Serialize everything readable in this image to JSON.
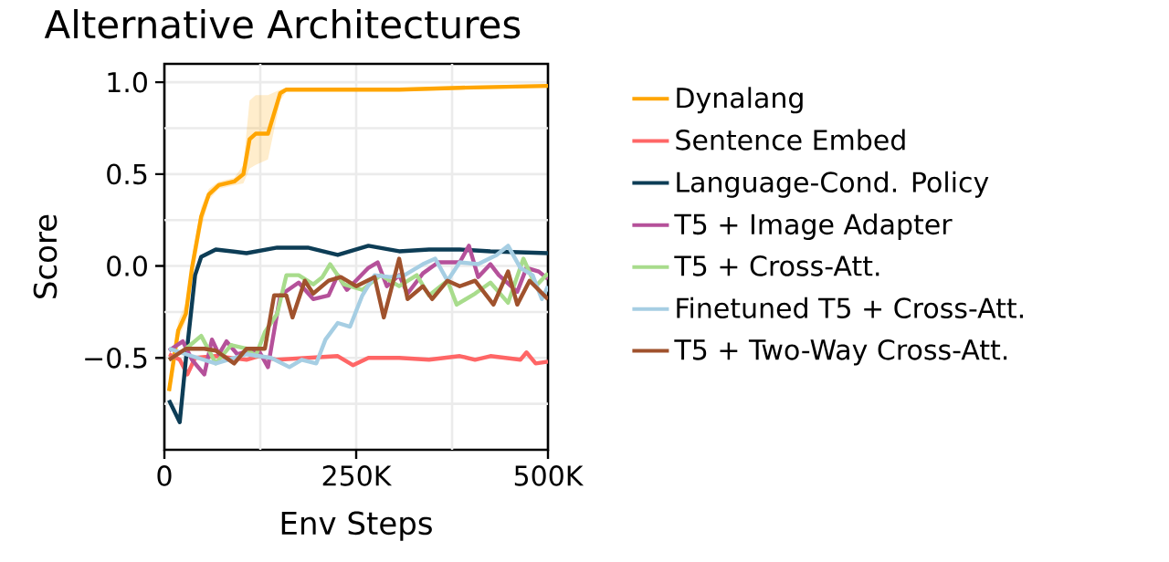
{
  "chart_data": {
    "type": "line",
    "title": "Alternative Architectures",
    "xlabel": "Env Steps",
    "ylabel": "Score",
    "xlim": [
      0,
      500000
    ],
    "ylim": [
      -1.0,
      1.1
    ],
    "xticks": [
      {
        "value": 0,
        "label": "0"
      },
      {
        "value": 125000,
        "label": null
      },
      {
        "value": 250000,
        "label": "250K"
      },
      {
        "value": 375000,
        "label": null
      },
      {
        "value": 500000,
        "label": "500K"
      }
    ],
    "yticks": [
      {
        "value": -0.75,
        "label": null
      },
      {
        "value": -0.5,
        "label": "−0.5"
      },
      {
        "value": -0.25,
        "label": null
      },
      {
        "value": 0,
        "label": "0.0"
      },
      {
        "value": 0.25,
        "label": null
      },
      {
        "value": 0.5,
        "label": "0.5"
      },
      {
        "value": 0.75,
        "label": null
      },
      {
        "value": 1.0,
        "label": "1.0"
      }
    ],
    "grid": true,
    "legend": "right",
    "line_style": "solid",
    "marker": "none",
    "series": [
      {
        "name": "Dynalang",
        "color": "#ffa500",
        "x": [
          6000,
          18000,
          28000,
          36000,
          48000,
          58000,
          71000,
          91000,
          103000,
          111000,
          119000,
          135000,
          151000,
          159000,
          226000,
          306000,
          385000,
          500000
        ],
        "values": [
          -0.68,
          -0.35,
          -0.26,
          -0.01,
          0.27,
          0.39,
          0.44,
          0.46,
          0.5,
          0.69,
          0.72,
          0.72,
          0.94,
          0.96,
          0.96,
          0.96,
          0.97,
          0.98
        ],
        "lower": [
          -0.7,
          -0.4,
          -0.3,
          -0.08,
          0.2,
          0.36,
          0.42,
          0.44,
          0.45,
          0.53,
          0.55,
          0.58,
          0.9,
          0.95,
          0.95,
          0.95,
          0.96,
          0.97
        ],
        "upper": [
          -0.66,
          -0.3,
          -0.2,
          0.05,
          0.32,
          0.42,
          0.46,
          0.48,
          0.55,
          0.9,
          0.93,
          0.93,
          0.96,
          0.97,
          0.97,
          0.97,
          0.98,
          0.99
        ]
      },
      {
        "name": "Sentence Embed",
        "color": "#ff6666",
        "x": [
          6000,
          20000,
          30000,
          40000,
          67000,
          107000,
          123000,
          147000,
          187000,
          226000,
          246000,
          266000,
          306000,
          345000,
          385000,
          405000,
          425000,
          464000,
          472000,
          484000,
          500000
        ],
        "values": [
          -0.48,
          -0.51,
          -0.59,
          -0.5,
          -0.49,
          -0.51,
          -0.49,
          -0.51,
          -0.5,
          -0.49,
          -0.54,
          -0.5,
          -0.5,
          -0.51,
          -0.49,
          -0.51,
          -0.49,
          -0.51,
          -0.47,
          -0.53,
          -0.52
        ]
      },
      {
        "name": "Language-Cond. Policy",
        "color": "#0d3d56",
        "x": [
          6000,
          20000,
          28000,
          40000,
          48000,
          67000,
          107000,
          147000,
          187000,
          226000,
          266000,
          306000,
          345000,
          385000,
          425000,
          500000
        ],
        "values": [
          -0.73,
          -0.85,
          -0.51,
          -0.05,
          0.05,
          0.09,
          0.07,
          0.1,
          0.1,
          0.06,
          0.11,
          0.08,
          0.09,
          0.09,
          0.08,
          0.07
        ]
      },
      {
        "name": "T5 + Image Adapter",
        "color": "#b5519a",
        "x": [
          6000,
          24000,
          36000,
          52000,
          62000,
          71000,
          81000,
          95000,
          111000,
          123000,
          135000,
          151000,
          175000,
          194000,
          214000,
          226000,
          238000,
          266000,
          278000,
          290000,
          306000,
          317000,
          337000,
          357000,
          385000,
          397000,
          409000,
          425000,
          436000,
          460000,
          472000,
          488000,
          500000
        ],
        "values": [
          -0.46,
          -0.41,
          -0.51,
          -0.59,
          -0.4,
          -0.48,
          -0.41,
          -0.48,
          -0.46,
          -0.46,
          -0.55,
          -0.16,
          -0.09,
          -0.18,
          -0.16,
          -0.05,
          -0.13,
          -0.01,
          0.02,
          -0.11,
          -0.05,
          -0.15,
          -0.04,
          0.02,
          0.02,
          0.11,
          -0.06,
          0.01,
          -0.05,
          -0.14,
          -0.01,
          -0.03,
          -0.07
        ]
      },
      {
        "name": "T5 + Cross-Att.",
        "color": "#a8dc8c",
        "x": [
          6000,
          28000,
          48000,
          67000,
          87000,
          107000,
          119000,
          131000,
          147000,
          159000,
          175000,
          194000,
          206000,
          216000,
          234000,
          258000,
          282000,
          306000,
          329000,
          345000,
          369000,
          381000,
          405000,
          425000,
          448000,
          468000,
          484000,
          500000
        ],
        "values": [
          -0.51,
          -0.45,
          -0.38,
          -0.53,
          -0.43,
          -0.45,
          -0.49,
          -0.36,
          -0.26,
          -0.05,
          -0.05,
          -0.1,
          -0.06,
          0.01,
          -0.1,
          -0.13,
          -0.05,
          -0.11,
          -0.05,
          -0.16,
          -0.08,
          -0.21,
          -0.15,
          -0.09,
          -0.2,
          0.04,
          -0.11,
          -0.04
        ]
      },
      {
        "name": "Finetuned T5 + Cross-Att.",
        "color": "#a6cee3",
        "x": [
          6000,
          28000,
          67000,
          107000,
          139000,
          163000,
          179000,
          198000,
          210000,
          226000,
          242000,
          258000,
          274000,
          294000,
          313000,
          337000,
          353000,
          369000,
          385000,
          409000,
          433000,
          448000,
          464000,
          480000,
          492000,
          500000
        ],
        "values": [
          -0.45,
          -0.48,
          -0.53,
          -0.48,
          -0.5,
          -0.55,
          -0.51,
          -0.53,
          -0.4,
          -0.31,
          -0.33,
          -0.16,
          -0.05,
          -0.06,
          -0.05,
          0.01,
          0.04,
          -0.08,
          0.02,
          0.01,
          0.06,
          0.11,
          -0.01,
          -0.05,
          -0.18,
          -0.11
        ]
      },
      {
        "name": "T5 + Two-Way Cross-Att.",
        "color": "#a0522d",
        "x": [
          6000,
          28000,
          52000,
          67000,
          91000,
          107000,
          131000,
          143000,
          159000,
          167000,
          183000,
          194000,
          214000,
          230000,
          250000,
          274000,
          286000,
          306000,
          317000,
          337000,
          349000,
          369000,
          385000,
          405000,
          429000,
          448000,
          460000,
          476000,
          500000
        ],
        "values": [
          -0.51,
          -0.45,
          -0.45,
          -0.46,
          -0.53,
          -0.45,
          -0.45,
          -0.16,
          -0.16,
          -0.28,
          -0.08,
          -0.15,
          -0.08,
          -0.06,
          -0.11,
          -0.06,
          -0.28,
          0.04,
          -0.18,
          -0.11,
          -0.18,
          -0.08,
          -0.11,
          -0.08,
          -0.21,
          -0.03,
          -0.21,
          -0.08,
          -0.18
        ]
      }
    ]
  }
}
